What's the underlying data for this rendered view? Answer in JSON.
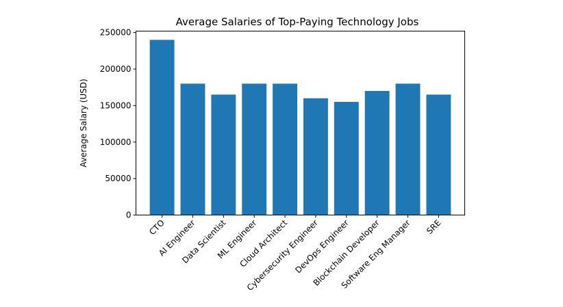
{
  "chart_data": {
    "type": "bar",
    "title": "Average Salaries of Top-Paying Technology Jobs",
    "xlabel": "",
    "ylabel": "Average Salary (USD)",
    "categories": [
      "CTO",
      "AI Engineer",
      "Data Scientist",
      "ML Engineer",
      "Cloud Architect",
      "Cybersecurity Engineer",
      "DevOps Engineer",
      "Blockchain Developer",
      "Software Eng Manager",
      "SRE"
    ],
    "values": [
      240000,
      180000,
      165000,
      180000,
      180000,
      160000,
      155000,
      170000,
      180000,
      165000
    ],
    "ylim": [
      0,
      252000
    ],
    "yticks": [
      0,
      50000,
      100000,
      150000,
      200000,
      250000
    ],
    "ytick_labels": [
      "0",
      "50000",
      "100000",
      "150000",
      "200000",
      "250000"
    ],
    "grid": false,
    "bar_color": "#1f77b4"
  }
}
